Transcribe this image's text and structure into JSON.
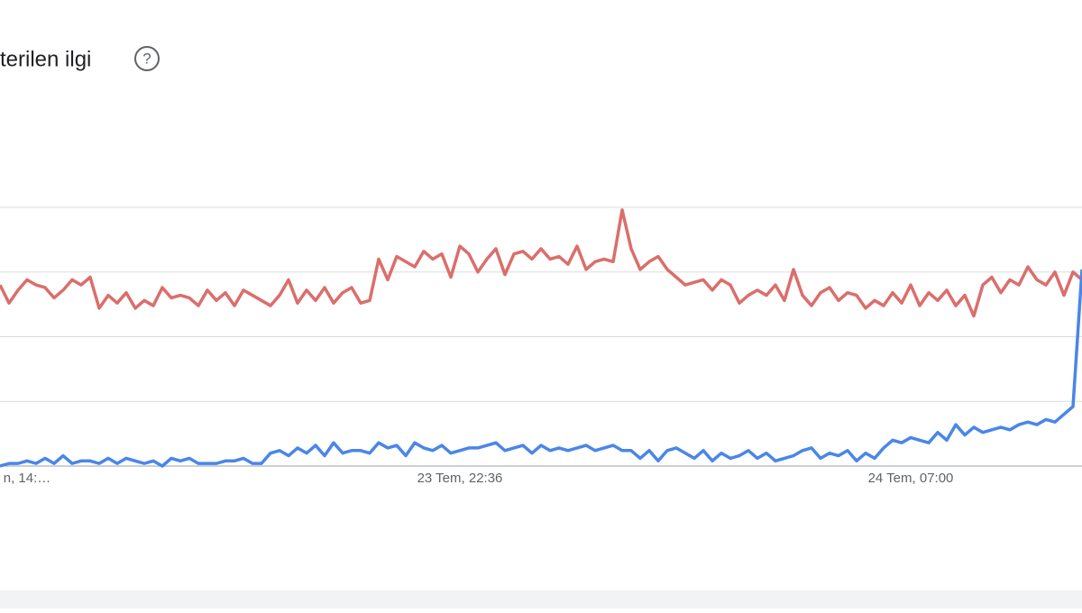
{
  "chart_data": {
    "type": "line",
    "title": "terilen ilgi",
    "categories": [
      null,
      null,
      null,
      "n, 14:…",
      null,
      null,
      null,
      null,
      null,
      null,
      null,
      null,
      null,
      null,
      null,
      null,
      null,
      null,
      null,
      null,
      null,
      null,
      null,
      null,
      null,
      null,
      null,
      null,
      null,
      null,
      null,
      null,
      null,
      null,
      null,
      null,
      null,
      null,
      null,
      null,
      null,
      null,
      null,
      null,
      null,
      null,
      null,
      null,
      null,
      null,
      null,
      "23 Tem, 22:36",
      null,
      null,
      null,
      null,
      null,
      null,
      null,
      null,
      null,
      null,
      null,
      null,
      null,
      null,
      null,
      null,
      null,
      null,
      null,
      null,
      null,
      null,
      null,
      null,
      null,
      null,
      null,
      null,
      null,
      null,
      null,
      null,
      null,
      null,
      null,
      null,
      null,
      null,
      null,
      null,
      null,
      null,
      null,
      null,
      null,
      null,
      null,
      null,
      null,
      "24 Tem, 07:00",
      null,
      null,
      null,
      null,
      null,
      null,
      null,
      null,
      null,
      null,
      null,
      null,
      null,
      null,
      null,
      null,
      null,
      null,
      null
    ],
    "series": [
      {
        "color": "#db6e6b",
        "values": [
          70,
          63,
          68,
          72,
          70,
          69,
          65,
          68,
          72,
          70,
          73,
          61,
          66,
          63,
          67,
          61,
          64,
          62,
          69,
          65,
          66,
          65,
          62,
          68,
          64,
          67,
          62,
          68,
          66,
          64,
          62,
          66,
          72,
          63,
          68,
          64,
          69,
          63,
          67,
          69,
          63,
          64,
          80,
          72,
          81,
          79,
          77,
          83,
          80,
          82,
          73,
          85,
          82,
          75,
          80,
          84,
          74,
          82,
          83,
          80,
          84,
          80,
          81,
          78,
          85,
          76,
          79,
          80,
          79,
          99,
          84,
          76,
          79,
          81,
          76,
          73,
          70,
          71,
          72,
          68,
          72,
          70,
          63,
          66,
          68,
          66,
          70,
          64,
          76,
          66,
          62,
          67,
          69,
          64,
          67,
          66,
          61,
          64,
          62,
          67,
          63,
          70,
          62,
          67,
          64,
          68,
          62,
          66,
          58,
          70,
          73,
          67,
          72,
          70,
          77,
          72,
          70,
          75,
          66,
          75,
          72
        ]
      },
      {
        "color": "#4a86e8",
        "values": [
          0,
          1,
          1,
          2,
          1,
          3,
          1,
          4,
          1,
          2,
          2,
          1,
          3,
          1,
          3,
          2,
          1,
          2,
          0,
          3,
          2,
          3,
          1,
          1,
          1,
          2,
          2,
          3,
          1,
          1,
          5,
          6,
          4,
          7,
          5,
          8,
          4,
          9,
          5,
          6,
          6,
          5,
          9,
          7,
          8,
          4,
          9,
          7,
          6,
          8,
          5,
          6,
          7,
          7,
          8,
          9,
          6,
          7,
          8,
          5,
          8,
          6,
          7,
          6,
          7,
          8,
          6,
          7,
          8,
          6,
          6,
          3,
          6,
          2,
          6,
          7,
          5,
          3,
          6,
          2,
          5,
          3,
          4,
          6,
          3,
          5,
          2,
          3,
          4,
          6,
          7,
          3,
          5,
          4,
          6,
          2,
          5,
          3,
          7,
          10,
          9,
          11,
          10,
          9,
          13,
          10,
          16,
          12,
          15,
          13,
          14,
          15,
          14,
          16,
          17,
          16,
          18,
          17,
          20,
          23,
          76
        ]
      }
    ],
    "ylim": [
      0,
      100
    ],
    "yticks": [
      0,
      25,
      50,
      75,
      100
    ],
    "grid": true
  }
}
